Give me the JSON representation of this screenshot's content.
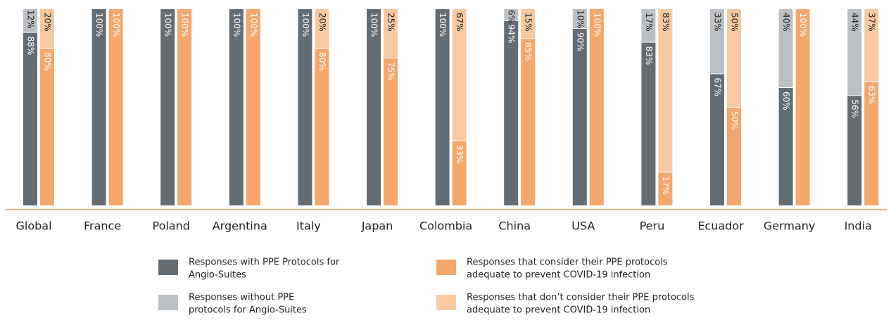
{
  "colors": {
    "with_protocols": "#646c73",
    "without_protocols": "#bcc0c4",
    "adequate": "#f4a66b",
    "not_adequate": "#f8c8a0",
    "baseline": "#e8914e",
    "label_dark": "#1f1f1f",
    "label_light": "#ffffff"
  },
  "chart_data": {
    "type": "bar",
    "stacked": true,
    "grouped": true,
    "value_unit": "percent",
    "categories": [
      "Global",
      "France",
      "Poland",
      "Argentina",
      "Italy",
      "Japan",
      "Colombia",
      "China",
      "USA",
      "Peru",
      "Ecuador",
      "Germany",
      "India"
    ],
    "groups": [
      {
        "series": [
          {
            "name": "Responses with PPE Protocols for Angio-Suites",
            "values": [
              88,
              100,
              100,
              100,
              100,
              100,
              100,
              94,
              90,
              83,
              67,
              60,
              56
            ],
            "labels": [
              "88%",
              "100%",
              "100%",
              "100%",
              "100%",
              "100%",
              "100%",
              "94%",
              "90%",
              "83%",
              "67%",
              "60%",
              "56%"
            ]
          },
          {
            "name": "Responses without PPE protocols for Angio-Suites",
            "values": [
              12,
              0,
              0,
              0,
              0,
              0,
              0,
              6,
              10,
              17,
              33,
              40,
              44
            ],
            "labels": [
              "12%",
              "",
              "",
              "",
              "",
              "",
              "",
              "6%",
              "10%",
              "17%",
              "33%",
              "40%",
              "44%"
            ]
          }
        ]
      },
      {
        "series": [
          {
            "name": "Responses that consider their PPE protocols adequate to prevent COVID-19 infection",
            "values": [
              80,
              100,
              100,
              100,
              80,
              75,
              33,
              85,
              100,
              17,
              50,
              100,
              63
            ],
            "labels": [
              "80%",
              "100%",
              "100%",
              "100%",
              "80%",
              "75%",
              "33%",
              "85%",
              "100%",
              "17%",
              "50%",
              "100%",
              "63%"
            ]
          },
          {
            "name": "Responses that don’t consider their PPE protocols adequate to prevent COVID-19 infection",
            "values": [
              20,
              0,
              0,
              0,
              20,
              25,
              67,
              15,
              0,
              83,
              50,
              0,
              37
            ],
            "labels": [
              "20%",
              "",
              "",
              "",
              "20%",
              "25%",
              "67%",
              "15%",
              "",
              "83%",
              "50%",
              "",
              "37%"
            ]
          }
        ]
      }
    ],
    "legend": {
      "position": "bottom",
      "items": [
        {
          "name": "Responses with PPE Protocols for Angio-Suites",
          "lines": [
            "Responses with PPE Protocols for",
            "Angio-Suites"
          ],
          "color_key": "with_protocols"
        },
        {
          "name": "Responses that consider their PPE protocols adequate to prevent COVID-19 infection",
          "lines": [
            "Responses that consider their PPE protocols",
            "adequate to prevent COVID-19 infection"
          ],
          "color_key": "adequate"
        },
        {
          "name": "Responses without PPE protocols for Angio-Suites",
          "lines": [
            "Responses without PPE",
            "protocols for Angio-Suites"
          ],
          "color_key": "without_protocols"
        },
        {
          "name": "Responses that don’t consider their PPE protocols adequate to prevent COVID-19 infection",
          "lines": [
            "Responses that don’t consider their PPE protocols",
            "adequate to prevent COVID-19 infection"
          ],
          "color_key": "not_adequate"
        }
      ]
    },
    "ylim": [
      0,
      100
    ],
    "grid": false,
    "title": "",
    "xlabel": "",
    "ylabel": ""
  }
}
